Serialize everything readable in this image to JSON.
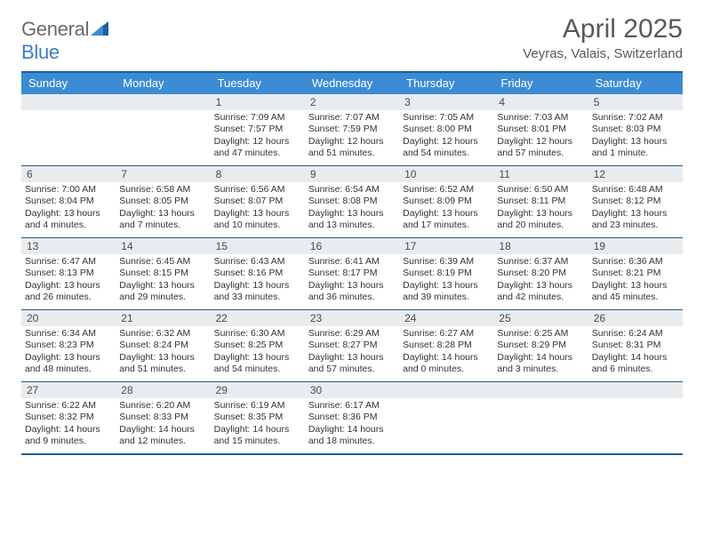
{
  "logo": {
    "word1": "General",
    "word2": "Blue"
  },
  "title": {
    "month": "April 2025",
    "location": "Veyras, Valais, Switzerland"
  },
  "colors": {
    "header_bg": "#3b8cd4",
    "rule": "#1f5f99",
    "daynum_bg": "#e9ecef",
    "text": "#333333",
    "title_text": "#595959",
    "logo_gray": "#6b6b6b",
    "logo_blue": "#3b7fc4"
  },
  "dow": [
    "Sunday",
    "Monday",
    "Tuesday",
    "Wednesday",
    "Thursday",
    "Friday",
    "Saturday"
  ],
  "weeks": [
    [
      null,
      null,
      {
        "n": "1",
        "sr": "7:09 AM",
        "ss": "7:57 PM",
        "d": "12 hours and 47 minutes."
      },
      {
        "n": "2",
        "sr": "7:07 AM",
        "ss": "7:59 PM",
        "d": "12 hours and 51 minutes."
      },
      {
        "n": "3",
        "sr": "7:05 AM",
        "ss": "8:00 PM",
        "d": "12 hours and 54 minutes."
      },
      {
        "n": "4",
        "sr": "7:03 AM",
        "ss": "8:01 PM",
        "d": "12 hours and 57 minutes."
      },
      {
        "n": "5",
        "sr": "7:02 AM",
        "ss": "8:03 PM",
        "d": "13 hours and 1 minute."
      }
    ],
    [
      {
        "n": "6",
        "sr": "7:00 AM",
        "ss": "8:04 PM",
        "d": "13 hours and 4 minutes."
      },
      {
        "n": "7",
        "sr": "6:58 AM",
        "ss": "8:05 PM",
        "d": "13 hours and 7 minutes."
      },
      {
        "n": "8",
        "sr": "6:56 AM",
        "ss": "8:07 PM",
        "d": "13 hours and 10 minutes."
      },
      {
        "n": "9",
        "sr": "6:54 AM",
        "ss": "8:08 PM",
        "d": "13 hours and 13 minutes."
      },
      {
        "n": "10",
        "sr": "6:52 AM",
        "ss": "8:09 PM",
        "d": "13 hours and 17 minutes."
      },
      {
        "n": "11",
        "sr": "6:50 AM",
        "ss": "8:11 PM",
        "d": "13 hours and 20 minutes."
      },
      {
        "n": "12",
        "sr": "6:48 AM",
        "ss": "8:12 PM",
        "d": "13 hours and 23 minutes."
      }
    ],
    [
      {
        "n": "13",
        "sr": "6:47 AM",
        "ss": "8:13 PM",
        "d": "13 hours and 26 minutes."
      },
      {
        "n": "14",
        "sr": "6:45 AM",
        "ss": "8:15 PM",
        "d": "13 hours and 29 minutes."
      },
      {
        "n": "15",
        "sr": "6:43 AM",
        "ss": "8:16 PM",
        "d": "13 hours and 33 minutes."
      },
      {
        "n": "16",
        "sr": "6:41 AM",
        "ss": "8:17 PM",
        "d": "13 hours and 36 minutes."
      },
      {
        "n": "17",
        "sr": "6:39 AM",
        "ss": "8:19 PM",
        "d": "13 hours and 39 minutes."
      },
      {
        "n": "18",
        "sr": "6:37 AM",
        "ss": "8:20 PM",
        "d": "13 hours and 42 minutes."
      },
      {
        "n": "19",
        "sr": "6:36 AM",
        "ss": "8:21 PM",
        "d": "13 hours and 45 minutes."
      }
    ],
    [
      {
        "n": "20",
        "sr": "6:34 AM",
        "ss": "8:23 PM",
        "d": "13 hours and 48 minutes."
      },
      {
        "n": "21",
        "sr": "6:32 AM",
        "ss": "8:24 PM",
        "d": "13 hours and 51 minutes."
      },
      {
        "n": "22",
        "sr": "6:30 AM",
        "ss": "8:25 PM",
        "d": "13 hours and 54 minutes."
      },
      {
        "n": "23",
        "sr": "6:29 AM",
        "ss": "8:27 PM",
        "d": "13 hours and 57 minutes."
      },
      {
        "n": "24",
        "sr": "6:27 AM",
        "ss": "8:28 PM",
        "d": "14 hours and 0 minutes."
      },
      {
        "n": "25",
        "sr": "6:25 AM",
        "ss": "8:29 PM",
        "d": "14 hours and 3 minutes."
      },
      {
        "n": "26",
        "sr": "6:24 AM",
        "ss": "8:31 PM",
        "d": "14 hours and 6 minutes."
      }
    ],
    [
      {
        "n": "27",
        "sr": "6:22 AM",
        "ss": "8:32 PM",
        "d": "14 hours and 9 minutes."
      },
      {
        "n": "28",
        "sr": "6:20 AM",
        "ss": "8:33 PM",
        "d": "14 hours and 12 minutes."
      },
      {
        "n": "29",
        "sr": "6:19 AM",
        "ss": "8:35 PM",
        "d": "14 hours and 15 minutes."
      },
      {
        "n": "30",
        "sr": "6:17 AM",
        "ss": "8:36 PM",
        "d": "14 hours and 18 minutes."
      },
      null,
      null,
      null
    ]
  ],
  "labels": {
    "sunrise": "Sunrise: ",
    "sunset": "Sunset: ",
    "daylight": "Daylight: "
  }
}
